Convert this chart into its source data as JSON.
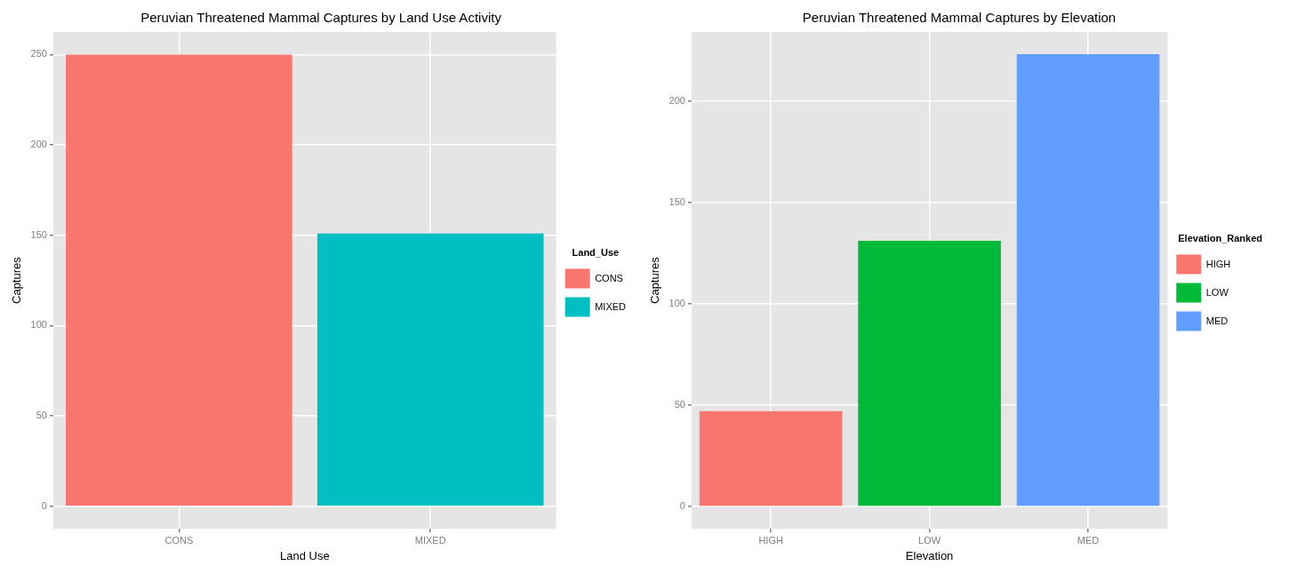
{
  "chart_data": [
    {
      "type": "bar",
      "title": "Peruvian Threatened Mammal Captures by Land Use Activity",
      "xlabel": "Land Use",
      "ylabel": "Captures",
      "legend_title": "Land_Use",
      "categories": [
        "CONS",
        "MIXED"
      ],
      "series": [
        {
          "name": "CONS",
          "color": "#f8766d",
          "values": [
            250,
            null
          ]
        },
        {
          "name": "MIXED",
          "color": "#00bfc4",
          "values": [
            null,
            151
          ]
        }
      ],
      "ylim": [
        -12.5,
        262.5
      ],
      "yticks": [
        0,
        50,
        100,
        150,
        200,
        250
      ],
      "grid": true,
      "legend": "right"
    },
    {
      "type": "bar",
      "title": "Peruvian Threatened Mammal Captures by Elevation",
      "xlabel": "Elevation",
      "ylabel": "Captures",
      "legend_title": "Elevation_Ranked",
      "categories": [
        "HIGH",
        "LOW",
        "MED"
      ],
      "series": [
        {
          "name": "HIGH",
          "color": "#f8766d",
          "values": [
            47,
            null,
            null
          ]
        },
        {
          "name": "LOW",
          "color": "#00ba38",
          "values": [
            null,
            131,
            null
          ]
        },
        {
          "name": "MED",
          "color": "#619cff",
          "values": [
            null,
            null,
            223
          ]
        }
      ],
      "ylim": [
        -11,
        234
      ],
      "yticks": [
        0,
        50,
        100,
        150,
        200
      ],
      "grid": true,
      "legend": "right"
    }
  ]
}
